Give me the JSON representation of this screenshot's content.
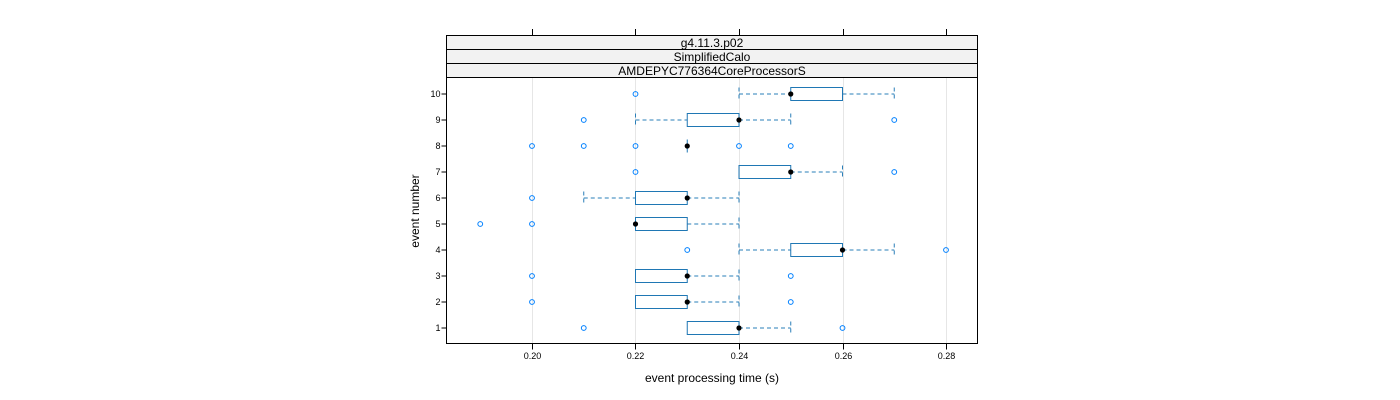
{
  "chart_data": {
    "type": "boxplot",
    "orientation": "horizontal",
    "strips": [
      "g4.11.3.p02",
      "SimplifiedCalo",
      "AMDEPYC776364CoreProcessorS"
    ],
    "xlabel": "event processing time (s)",
    "ylabel": "event number",
    "xlim": [
      0.183,
      0.286
    ],
    "x_ticks": [
      0.2,
      0.22,
      0.24,
      0.26,
      0.28
    ],
    "x_tick_labels": [
      "0.20",
      "0.22",
      "0.24",
      "0.26",
      "0.28"
    ],
    "grid": true,
    "colors": {
      "box": "#0080ff",
      "median": "#000000",
      "grid": "#e6e6e6",
      "strip_bg": "#f2f2f2"
    },
    "categories": [
      "1",
      "2",
      "3",
      "4",
      "5",
      "6",
      "7",
      "8",
      "9",
      "10"
    ],
    "boxes": [
      {
        "event": "1",
        "whisker_low": 0.23,
        "q1": 0.23,
        "median": 0.24,
        "q3": 0.24,
        "whisker_high": 0.25,
        "outliers": [
          0.21,
          0.26
        ]
      },
      {
        "event": "2",
        "whisker_low": 0.22,
        "q1": 0.22,
        "median": 0.23,
        "q3": 0.23,
        "whisker_high": 0.24,
        "outliers": [
          0.2,
          0.25
        ]
      },
      {
        "event": "3",
        "whisker_low": 0.22,
        "q1": 0.22,
        "median": 0.23,
        "q3": 0.23,
        "whisker_high": 0.24,
        "outliers": [
          0.2,
          0.25
        ]
      },
      {
        "event": "4",
        "whisker_low": 0.24,
        "q1": 0.25,
        "median": 0.26,
        "q3": 0.26,
        "whisker_high": 0.27,
        "outliers": [
          0.23,
          0.28
        ]
      },
      {
        "event": "5",
        "whisker_low": 0.22,
        "q1": 0.22,
        "median": 0.22,
        "q3": 0.23,
        "whisker_high": 0.24,
        "outliers": [
          0.19,
          0.2
        ]
      },
      {
        "event": "6",
        "whisker_low": 0.21,
        "q1": 0.22,
        "median": 0.23,
        "q3": 0.23,
        "whisker_high": 0.24,
        "outliers": [
          0.2
        ]
      },
      {
        "event": "7",
        "whisker_low": 0.24,
        "q1": 0.24,
        "median": 0.25,
        "q3": 0.25,
        "whisker_high": 0.26,
        "outliers": [
          0.22,
          0.27
        ]
      },
      {
        "event": "8",
        "whisker_low": 0.23,
        "q1": 0.23,
        "median": 0.23,
        "q3": 0.23,
        "whisker_high": 0.23,
        "outliers": [
          0.2,
          0.21,
          0.22,
          0.24,
          0.25
        ]
      },
      {
        "event": "9",
        "whisker_low": 0.22,
        "q1": 0.23,
        "median": 0.24,
        "q3": 0.24,
        "whisker_high": 0.25,
        "outliers": [
          0.21,
          0.27
        ]
      },
      {
        "event": "10",
        "whisker_low": 0.24,
        "q1": 0.25,
        "median": 0.25,
        "q3": 0.26,
        "whisker_high": 0.27,
        "outliers": [
          0.22
        ]
      }
    ]
  }
}
